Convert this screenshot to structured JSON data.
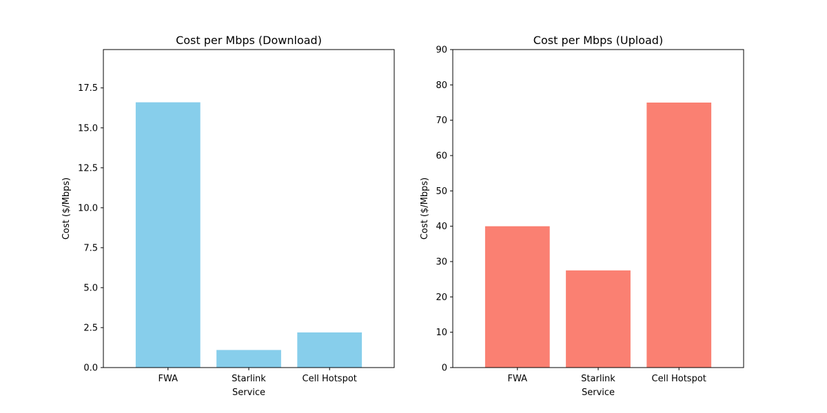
{
  "chart_data": [
    {
      "type": "bar",
      "title": "Cost per Mbps (Download)",
      "xlabel": "Service",
      "ylabel": "Cost ($/Mbps)",
      "categories": [
        "FWA",
        "Starlink",
        "Cell Hotspot"
      ],
      "values": [
        16.6,
        1.1,
        2.2
      ],
      "ylim": [
        0,
        19.9
      ],
      "yticks": [
        0,
        2.5,
        5,
        7.5,
        10,
        12.5,
        15,
        17.5
      ],
      "ytick_labels": [
        "0.0",
        "2.5",
        "5.0",
        "7.5",
        "10.0",
        "12.5",
        "15.0",
        "17.5"
      ],
      "color": "#87ceeb",
      "grid": false
    },
    {
      "type": "bar",
      "title": "Cost per Mbps (Upload)",
      "xlabel": "Service",
      "ylabel": "Cost ($/Mbps)",
      "categories": [
        "FWA",
        "Starlink",
        "Cell Hotspot"
      ],
      "values": [
        40,
        27.5,
        75
      ],
      "ylim": [
        0,
        90
      ],
      "yticks": [
        0,
        10,
        20,
        30,
        40,
        50,
        60,
        70,
        80,
        90
      ],
      "ytick_labels": [
        "0",
        "10",
        "20",
        "30",
        "40",
        "50",
        "60",
        "70",
        "80",
        "90"
      ],
      "color": "#fa8072",
      "grid": false
    }
  ]
}
